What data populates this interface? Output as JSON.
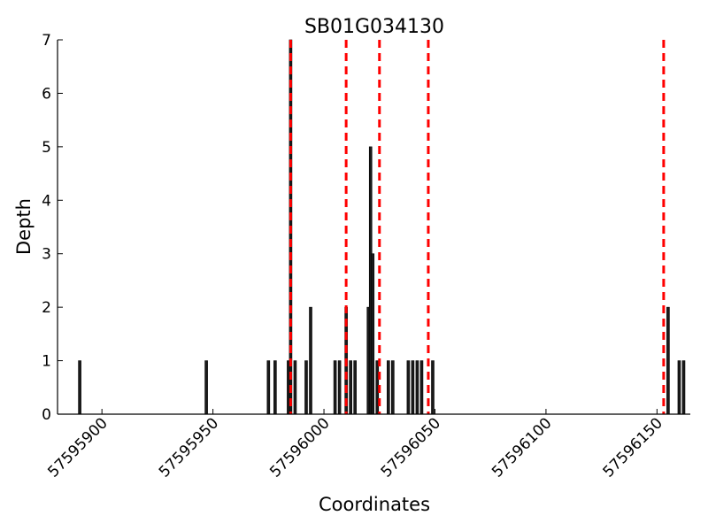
{
  "chart_data": {
    "type": "bar",
    "title": "SB01G034130",
    "xlabel": "Coordinates",
    "ylabel": "Depth",
    "xlim": [
      57595880,
      57596165
    ],
    "ylim": [
      0,
      7
    ],
    "xticks": [
      57595900,
      57595950,
      57596000,
      57596050,
      57596100,
      57596150
    ],
    "yticks": [
      0,
      1,
      2,
      3,
      4,
      5,
      6,
      7
    ],
    "grid": false,
    "bar_color": "#1a1a1a",
    "bars": [
      {
        "x": 57595890,
        "depth": 1
      },
      {
        "x": 57595947,
        "depth": 1
      },
      {
        "x": 57595975,
        "depth": 1
      },
      {
        "x": 57595978,
        "depth": 1
      },
      {
        "x": 57595984,
        "depth": 1
      },
      {
        "x": 57595985,
        "depth": 7
      },
      {
        "x": 57595987,
        "depth": 1
      },
      {
        "x": 57595992,
        "depth": 1
      },
      {
        "x": 57595994,
        "depth": 2
      },
      {
        "x": 57596005,
        "depth": 1
      },
      {
        "x": 57596007,
        "depth": 1
      },
      {
        "x": 57596010,
        "depth": 2
      },
      {
        "x": 57596012,
        "depth": 1
      },
      {
        "x": 57596014,
        "depth": 1
      },
      {
        "x": 57596020,
        "depth": 2
      },
      {
        "x": 57596021,
        "depth": 5
      },
      {
        "x": 57596022,
        "depth": 3
      },
      {
        "x": 57596024,
        "depth": 1
      },
      {
        "x": 57596029,
        "depth": 1
      },
      {
        "x": 57596031,
        "depth": 1
      },
      {
        "x": 57596038,
        "depth": 1
      },
      {
        "x": 57596040,
        "depth": 1
      },
      {
        "x": 57596042,
        "depth": 1
      },
      {
        "x": 57596044,
        "depth": 1
      },
      {
        "x": 57596049,
        "depth": 1
      },
      {
        "x": 57596155,
        "depth": 2
      },
      {
        "x": 57596160,
        "depth": 1
      },
      {
        "x": 57596162,
        "depth": 1
      }
    ],
    "markers": {
      "style": "dashed",
      "color": "#ff0000",
      "x": [
        57595985,
        57596010,
        57596025,
        57596047,
        57596153
      ]
    }
  }
}
